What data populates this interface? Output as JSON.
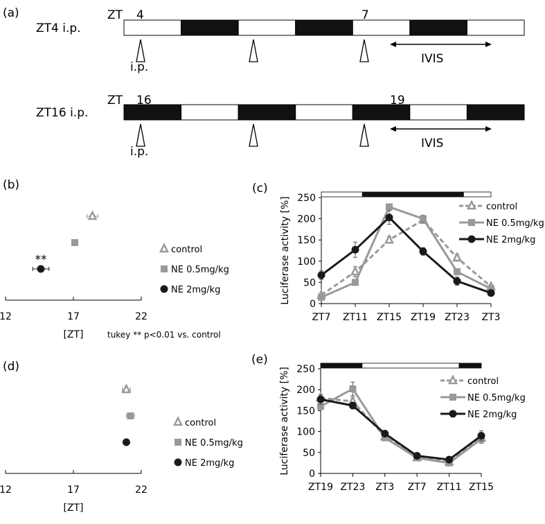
{
  "panel_a": {
    "label": "(a)",
    "rows": [
      {
        "name": "ZT4 i.p.",
        "zt_prefix": "ZT",
        "start": "4",
        "marker": "7",
        "ip": "i.p.",
        "ivis": "IVIS",
        "pattern": [
          "light",
          "dark",
          "light",
          "dark",
          "light",
          "dark",
          "light"
        ]
      },
      {
        "name": "ZT16 i.p.",
        "zt_prefix": "ZT",
        "start": "16",
        "marker": "19",
        "ip": "i.p.",
        "ivis": "IVIS",
        "pattern": [
          "dark",
          "light",
          "dark",
          "light",
          "dark",
          "light",
          "dark"
        ]
      }
    ]
  },
  "colors": {
    "control": "#999999",
    "ne05": "#999999",
    "ne2": "#1a1a1a",
    "dark": "#111111"
  },
  "chart_data": [
    {
      "panel": "(b)",
      "type": "scatter",
      "xlabel": "[ZT]",
      "xlim": [
        12,
        22
      ],
      "xticks": [
        "12",
        "17",
        "22"
      ],
      "note": "tukey ** p<0.01 vs. control",
      "series": [
        {
          "name": "control",
          "marker": "triangle",
          "x": 18.4,
          "err": 0.4
        },
        {
          "name": "NE 0.5mg/kg",
          "marker": "square",
          "x": 17.1,
          "err": 0.1
        },
        {
          "name": "NE 2mg/kg",
          "marker": "circle",
          "x": 14.6,
          "err": 0.6,
          "annotation": "**"
        }
      ]
    },
    {
      "panel": "(c)",
      "type": "line",
      "ylabel": "Luciferase activity [%]",
      "ylim": [
        0,
        250
      ],
      "yticks": [
        "0",
        "50",
        "100",
        "150",
        "200",
        "250"
      ],
      "categories": [
        "ZT7",
        "ZT11",
        "ZT15",
        "ZT19",
        "ZT23",
        "ZT3"
      ],
      "lightbar": {
        "dark_from": 1.2,
        "dark_to": 4.2
      },
      "legend": "top-right",
      "series": [
        {
          "name": "control",
          "style": "dashed",
          "marker": "triangle",
          "values": [
            20,
            75,
            150,
            197,
            108,
            40
          ],
          "err": [
            5,
            12,
            8,
            8,
            8,
            5
          ]
        },
        {
          "name": "NE 0.5mg/kg",
          "style": "solid-gray",
          "marker": "square",
          "values": [
            15,
            50,
            228,
            200,
            75,
            35
          ],
          "err": [
            4,
            5,
            4,
            8,
            7,
            4
          ]
        },
        {
          "name": "NE 2mg/kg",
          "style": "solid-black",
          "marker": "circle",
          "values": [
            67,
            127,
            203,
            123,
            53,
            25
          ],
          "err": [
            10,
            18,
            16,
            9,
            10,
            3
          ]
        }
      ]
    },
    {
      "panel": "(d)",
      "type": "scatter",
      "xlabel": "[ZT]",
      "xlim": [
        12,
        22
      ],
      "xticks": [
        "12",
        "17",
        "22"
      ],
      "series": [
        {
          "name": "control",
          "marker": "triangle",
          "x": 20.9,
          "err": 0.3
        },
        {
          "name": "NE 0.5mg/kg",
          "marker": "square",
          "x": 21.2,
          "err": 0.3
        },
        {
          "name": "NE 2mg/kg",
          "marker": "circle",
          "x": 20.9,
          "err": 0.1
        }
      ]
    },
    {
      "panel": "(e)",
      "type": "line",
      "ylabel": "Luciferase activity [%]",
      "ylim": [
        0,
        250
      ],
      "yticks": [
        "0",
        "50",
        "100",
        "150",
        "200",
        "250"
      ],
      "categories": [
        "ZT19",
        "ZT23",
        "ZT3",
        "ZT7",
        "ZT11",
        "ZT15"
      ],
      "lightbar": {
        "dark_from": 0,
        "dark_to": 1.3,
        "dark2_from": 4.3,
        "dark2_to": 5
      },
      "legend": "top-right",
      "series": [
        {
          "name": "control",
          "style": "dashed",
          "marker": "triangle",
          "values": [
            180,
            172,
            88,
            38,
            28,
            85
          ],
          "err": [
            6,
            10,
            5,
            3,
            3,
            8
          ]
        },
        {
          "name": "NE 0.5mg/kg",
          "style": "solid-gray",
          "marker": "square",
          "values": [
            160,
            202,
            85,
            37,
            25,
            82
          ],
          "err": [
            6,
            16,
            4,
            3,
            3,
            10
          ]
        },
        {
          "name": "NE 2mg/kg",
          "style": "solid-black",
          "marker": "circle",
          "values": [
            177,
            162,
            95,
            42,
            33,
            90
          ],
          "err": [
            12,
            8,
            4,
            3,
            3,
            12
          ]
        }
      ]
    }
  ]
}
